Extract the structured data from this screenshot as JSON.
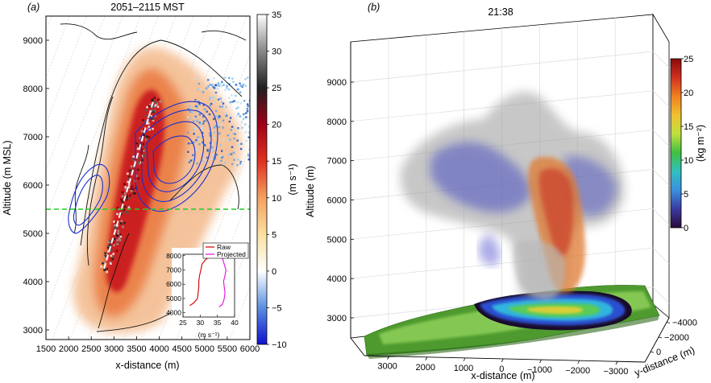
{
  "chart_data": [
    {
      "panel_label": "(a)",
      "title": "2051–2115 MST",
      "type": "heatmap",
      "xlabel": "x-distance (m)",
      "ylabel": "Altitude (m MSL)",
      "xlim": [
        1500,
        6000
      ],
      "ylim": [
        2800,
        9500
      ],
      "x_ticks": [
        "1500",
        "2000",
        "2500",
        "3000",
        "3500",
        "4000",
        "4500",
        "5000",
        "5500",
        "6000"
      ],
      "y_ticks": [
        "3000",
        "4000",
        "5000",
        "6000",
        "7000",
        "8000",
        "9000"
      ],
      "colorbar": {
        "label": "(m s⁻¹)",
        "range": [
          -10,
          35
        ],
        "ticks": [
          "35",
          "30",
          "25",
          "20",
          "15",
          "10",
          "5",
          "0",
          "−5",
          "−10"
        ],
        "colors": [
          "#1010d0",
          "#5a8fe0",
          "#ffffff",
          "#fbe0a0",
          "#f4a060",
          "#e03020",
          "#a00018",
          "#202020",
          "#888888",
          "#ffffff"
        ]
      },
      "reference_line_altitude": 5500,
      "inset": {
        "type": "line",
        "x_ticks": [
          "25",
          "30",
          "35",
          "40"
        ],
        "y_ticks": [
          "8000",
          "7000",
          "6000",
          "5000",
          "4000"
        ],
        "xlabel": "(m s⁻¹)",
        "xlim": [
          25,
          40
        ],
        "ylim": [
          3700,
          8100
        ],
        "series": [
          {
            "name": "Raw",
            "color": "#d01010",
            "points": [
              [
                33.0,
                8000
              ],
              [
                31.5,
                7700
              ],
              [
                30.5,
                7400
              ],
              [
                30.2,
                7000
              ],
              [
                29.8,
                6600
              ],
              [
                29.6,
                6200
              ],
              [
                29.6,
                5800
              ],
              [
                29.4,
                5400
              ],
              [
                29.2,
                5000
              ],
              [
                28.2,
                4700
              ],
              [
                27.0,
                4500
              ]
            ]
          },
          {
            "name": "Projected",
            "color": "#e020e0",
            "points": [
              [
                35.0,
                8000
              ],
              [
                36.5,
                7800
              ],
              [
                37.0,
                7400
              ],
              [
                37.5,
                7000
              ],
              [
                37.2,
                6600
              ],
              [
                36.8,
                6200
              ],
              [
                37.0,
                5800
              ],
              [
                37.2,
                5400
              ],
              [
                37.0,
                5000
              ],
              [
                36.5,
                4600
              ],
              [
                35.5,
                4400
              ]
            ]
          }
        ]
      }
    },
    {
      "panel_label": "(b)",
      "title": "21:38",
      "type": "3d-isosurface",
      "xlabel": "x-distance (m)",
      "ylabel": "y-distance (m)",
      "zlabel": "Altitude (m)",
      "x_ticks": [
        "3000",
        "2000",
        "1000",
        "0",
        "−1000",
        "−2000",
        "−3000"
      ],
      "y_ticks": [
        "−4000",
        "−2000",
        "0"
      ],
      "z_ticks": [
        "3000",
        "4000",
        "5000",
        "6000",
        "7000",
        "8000",
        "9000"
      ],
      "colorbar": {
        "label": "(kg m⁻²)",
        "range": [
          0,
          25
        ],
        "ticks": [
          "25",
          "20",
          "15",
          "10",
          "5",
          "0"
        ],
        "colors": [
          "#2a0a3a",
          "#3a3aa0",
          "#3a90e0",
          "#30c0c0",
          "#40c040",
          "#c0e040",
          "#f0c030",
          "#f08020",
          "#d03020",
          "#8a0a0a"
        ]
      }
    }
  ]
}
